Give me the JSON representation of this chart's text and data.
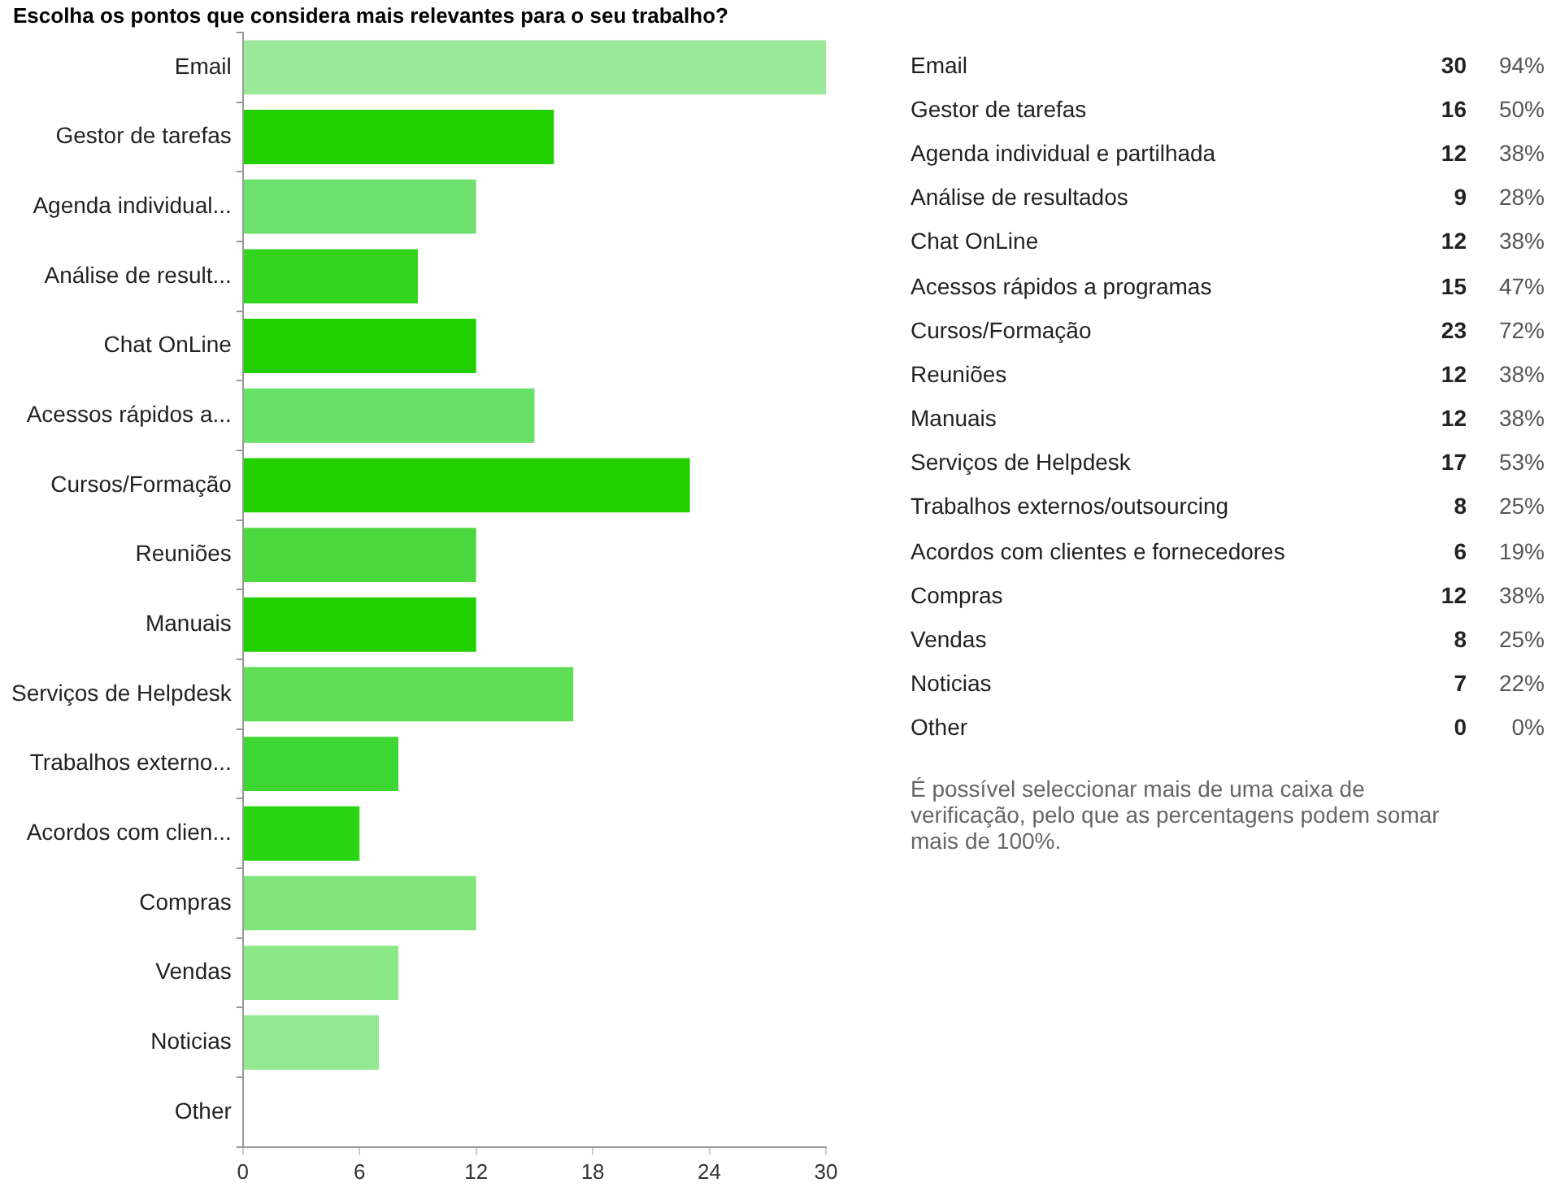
{
  "chart_data": [
    {
      "type": "bar",
      "orientation": "horizontal",
      "title": "Escolha os pontos que considera mais relevantes para o seu trabalho?",
      "categories": [
        "Email",
        "Gestor de tarefas",
        "Agenda individual...",
        "Análise de result...",
        "Chat OnLine",
        "Acessos rápidos a...",
        "Cursos/Formação",
        "Reuniões",
        "Manuais",
        "Serviços de Helpdesk",
        "Trabalhos externo...",
        "Acordos com clien...",
        "Compras",
        "Vendas",
        "Noticias",
        "Other"
      ],
      "values": [
        30,
        16,
        12,
        9,
        12,
        15,
        23,
        12,
        12,
        17,
        8,
        6,
        12,
        8,
        7,
        0
      ],
      "colors": [
        "#9be89b",
        "#22d000",
        "#6ee06e",
        "#33d41e",
        "#22d000",
        "#66e066",
        "#22d000",
        "#4cd93f",
        "#22d000",
        "#5edd55",
        "#3dd632",
        "#2ad611",
        "#80e47a",
        "#8ae887",
        "#93e991",
        "#a0eca0"
      ],
      "xlim": [
        0,
        30
      ],
      "xticks": [
        0,
        6,
        12,
        18,
        24,
        30
      ],
      "grid": false,
      "legend": false
    },
    {
      "type": "other",
      "data_labels": true,
      "categories": [
        "Email",
        "Gestor de tarefas",
        "Agenda individual e partilhada",
        "Análise de resultados",
        "Chat OnLine",
        "Acessos rápidos a programas",
        "Cursos/Formação",
        "Reuniões",
        "Manuais",
        "Serviços de Helpdesk",
        "Trabalhos externos/outsourcing",
        "Acordos com clientes e fornecedores",
        "Compras",
        "Vendas",
        "Noticias",
        "Other"
      ],
      "series": [
        {
          "values": [
            30,
            16,
            12,
            9,
            12,
            15,
            23,
            12,
            12,
            17,
            8,
            6,
            12,
            8,
            7,
            0
          ]
        },
        {
          "values": [
            94,
            50,
            38,
            28,
            38,
            47,
            72,
            38,
            38,
            53,
            25,
            19,
            38,
            25,
            22,
            0
          ],
          "value_labels": [
            "94%",
            "50%",
            "38%",
            "28%",
            "38%",
            "47%",
            "72%",
            "38%",
            "38%",
            "53%",
            "25%",
            "19%",
            "38%",
            "25%",
            "22%",
            "0%"
          ]
        }
      ],
      "annotations": [
        "É possível seleccionar mais de uma caixa de verificação, pelo que as percentagens podem somar mais de 100%."
      ]
    }
  ]
}
